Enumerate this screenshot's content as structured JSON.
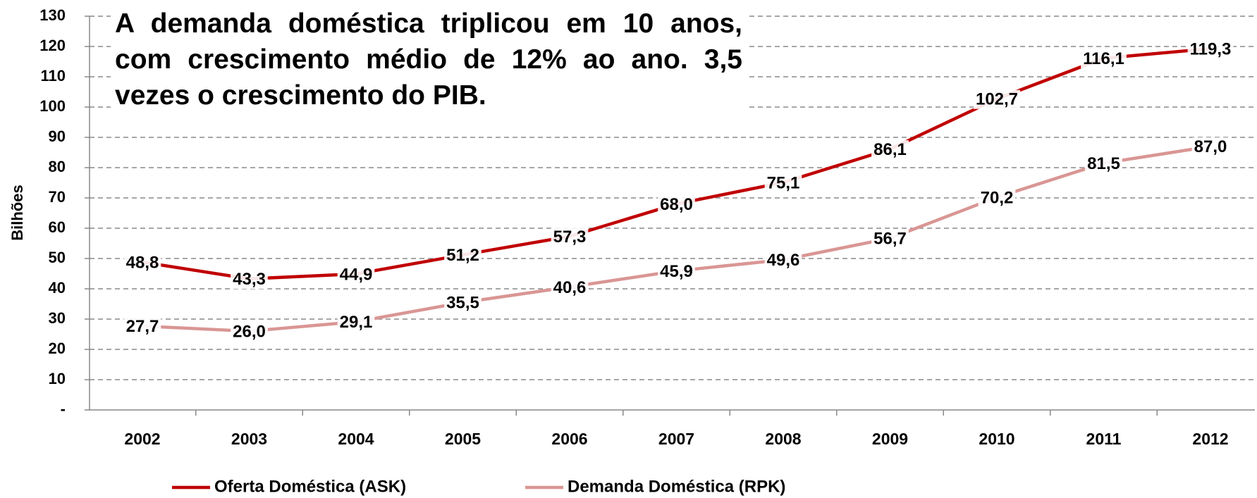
{
  "chart_data": {
    "type": "line",
    "annotation": "A demanda doméstica triplicou em 10 anos, com crescimento médio de 12% ao ano. 3,5 vezes o crescimento do PIB.",
    "y_label": "Bilhões",
    "categories": [
      "2002",
      "2003",
      "2004",
      "2005",
      "2006",
      "2007",
      "2008",
      "2009",
      "2010",
      "2011",
      "2012"
    ],
    "series": [
      {
        "name": "Oferta Doméstica (ASK)",
        "color": "#c00000",
        "values": [
          48.8,
          43.3,
          44.9,
          51.2,
          57.3,
          68.0,
          75.1,
          86.1,
          102.7,
          116.1,
          119.3
        ],
        "value_labels": [
          "48,8",
          "43,3",
          "44,9",
          "51,2",
          "57,3",
          "68,0",
          "75,1",
          "86,1",
          "102,7",
          "116,1",
          "119,3"
        ]
      },
      {
        "name": "Demanda Doméstica (RPK)",
        "color": "#d99694",
        "values": [
          27.7,
          26.0,
          29.1,
          35.5,
          40.6,
          45.9,
          49.6,
          56.7,
          70.2,
          81.5,
          87.0
        ],
        "value_labels": [
          "27,7",
          "26,0",
          "29,1",
          "35,5",
          "40,6",
          "45,9",
          "49,6",
          "56,7",
          "70,2",
          "81,5",
          "87,0"
        ]
      }
    ],
    "ylim": [
      0,
      130
    ],
    "yticks": [
      {
        "value": 0,
        "label": "-"
      },
      10,
      20,
      30,
      40,
      50,
      60,
      70,
      80,
      90,
      100,
      110,
      120,
      130
    ],
    "grid": true,
    "legend": "bottom"
  }
}
